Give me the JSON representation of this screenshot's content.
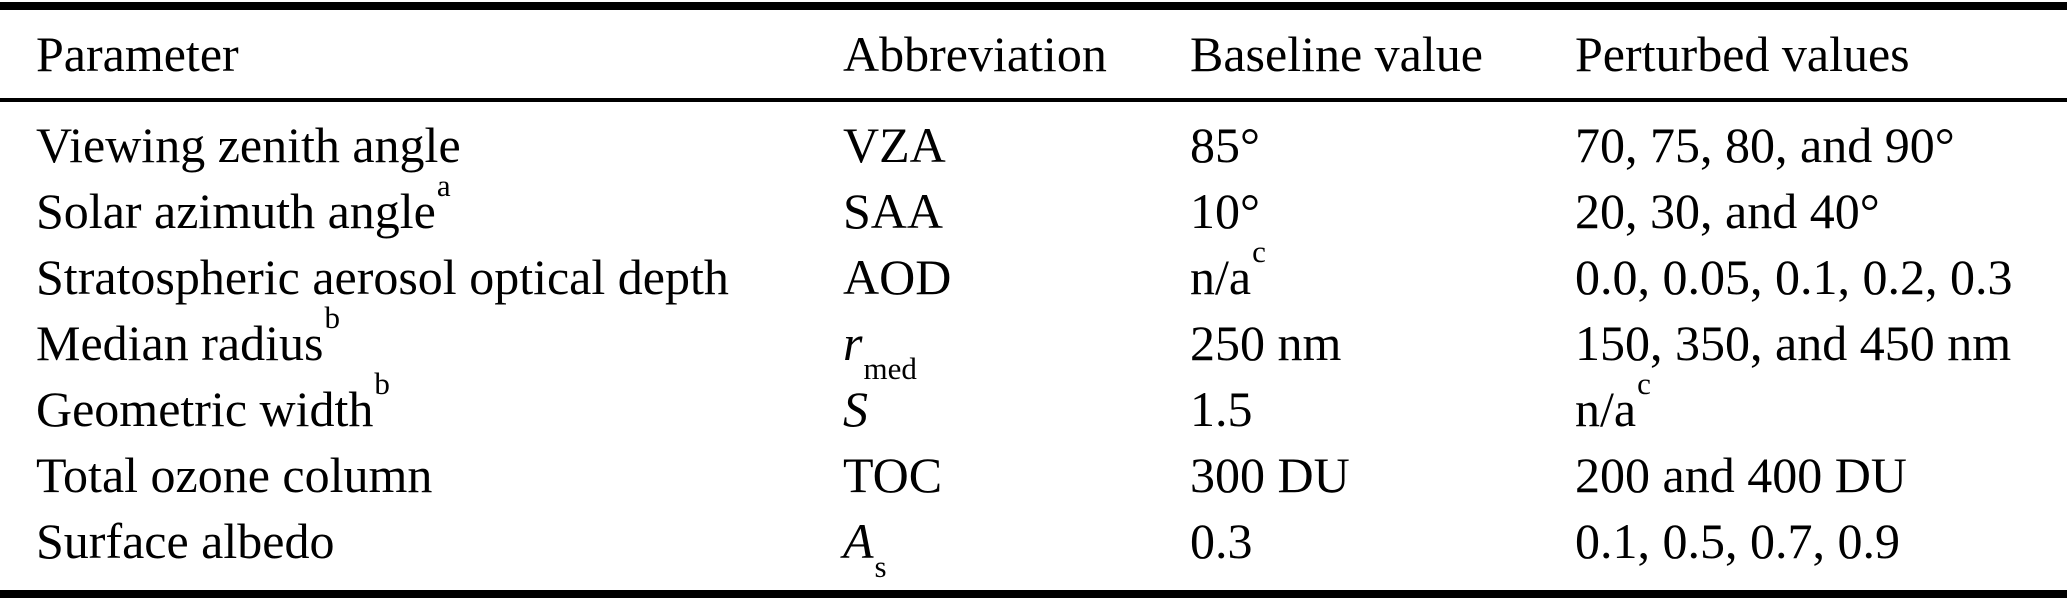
{
  "table": {
    "columns": [
      "Parameter",
      "Abbreviation",
      "Baseline value",
      "Perturbed values"
    ],
    "rows": [
      {
        "parameter": [
          {
            "t": "Viewing zenith angle"
          }
        ],
        "abbreviation": [
          {
            "t": "VZA"
          }
        ],
        "baseline": [
          {
            "t": "85°"
          }
        ],
        "perturbed": [
          {
            "t": "70, 75, 80, and 90°"
          }
        ]
      },
      {
        "parameter": [
          {
            "t": "Solar azimuth angle"
          },
          {
            "t": "a",
            "script": "sup"
          }
        ],
        "abbreviation": [
          {
            "t": "SAA"
          }
        ],
        "baseline": [
          {
            "t": "10°"
          }
        ],
        "perturbed": [
          {
            "t": "20, 30, and 40°"
          }
        ]
      },
      {
        "parameter": [
          {
            "t": "Stratospheric aerosol optical depth"
          }
        ],
        "abbreviation": [
          {
            "t": "AOD"
          }
        ],
        "baseline": [
          {
            "t": "n/a"
          },
          {
            "t": "c",
            "script": "sup"
          }
        ],
        "perturbed": [
          {
            "t": "0.0, 0.05, 0.1, 0.2, 0.3"
          }
        ]
      },
      {
        "parameter": [
          {
            "t": "Median radius"
          },
          {
            "t": "b",
            "script": "sup"
          }
        ],
        "abbreviation": [
          {
            "t": "r",
            "italic": true
          },
          {
            "t": "med",
            "script": "sub"
          }
        ],
        "baseline": [
          {
            "t": "250 nm"
          }
        ],
        "perturbed": [
          {
            "t": "150, 350, and 450 nm"
          }
        ]
      },
      {
        "parameter": [
          {
            "t": "Geometric width"
          },
          {
            "t": "b",
            "script": "sup"
          }
        ],
        "abbreviation": [
          {
            "t": "S",
            "italic": true
          }
        ],
        "baseline": [
          {
            "t": "1.5"
          }
        ],
        "perturbed": [
          {
            "t": "n/a"
          },
          {
            "t": "c",
            "script": "sup"
          }
        ]
      },
      {
        "parameter": [
          {
            "t": "Total ozone column"
          }
        ],
        "abbreviation": [
          {
            "t": "TOC"
          }
        ],
        "baseline": [
          {
            "t": "300 DU"
          }
        ],
        "perturbed": [
          {
            "t": "200 and 400 DU"
          }
        ]
      },
      {
        "parameter": [
          {
            "t": "Surface albedo"
          }
        ],
        "abbreviation": [
          {
            "t": "A",
            "italic": true
          },
          {
            "t": "s",
            "script": "sub"
          }
        ],
        "baseline": [
          {
            "t": "0.3"
          }
        ],
        "perturbed": [
          {
            "t": "0.1, 0.5, 0.7, 0.9"
          }
        ]
      }
    ],
    "colors": {
      "text": "#000000",
      "background": "#ffffff",
      "rule": "#000000"
    }
  }
}
